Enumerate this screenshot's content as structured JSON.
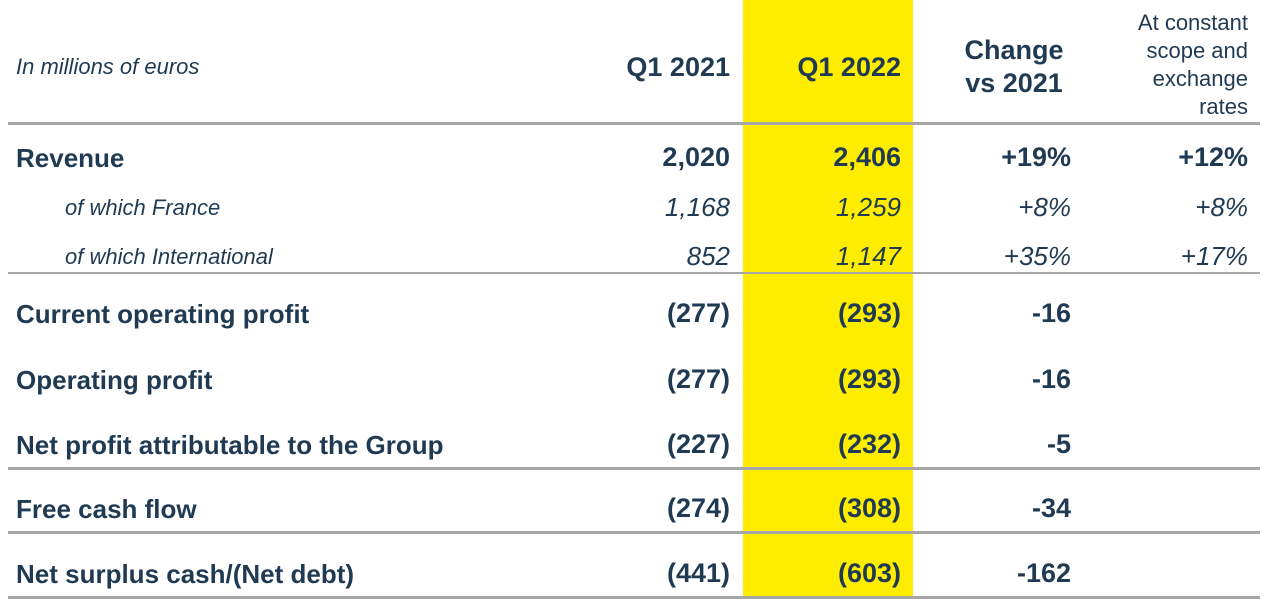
{
  "header": {
    "unit_label": "In millions of euros",
    "col_q1_2021": "Q1 2021",
    "col_q1_2022": "Q1 2022",
    "col_change_line1": "Change",
    "col_change_line2": "vs 2021",
    "col_constant_line1": "At constant",
    "col_constant_line2": "scope and",
    "col_constant_line3": "exchange",
    "col_constant_line4": "rates"
  },
  "highlight_color": "#ffed00",
  "rows": [
    {
      "label": "Revenue",
      "q1_2021": "2,020",
      "q1_2022": "2,406",
      "change": "+19%",
      "constant": "+12%"
    },
    {
      "label": "of which France",
      "q1_2021": "1,168",
      "q1_2022": "1,259",
      "change": "+8%",
      "constant": "+8%"
    },
    {
      "label": "of which International",
      "q1_2021": "852",
      "q1_2022": "1,147",
      "change": "+35%",
      "constant": "+17%"
    },
    {
      "label": "Current operating profit",
      "q1_2021": "(277)",
      "q1_2022": "(293)",
      "change": "-16",
      "constant": ""
    },
    {
      "label": "Operating profit",
      "q1_2021": "(277)",
      "q1_2022": "(293)",
      "change": "-16",
      "constant": ""
    },
    {
      "label": "Net profit attributable to the Group",
      "q1_2021": "(227)",
      "q1_2022": "(232)",
      "change": "-5",
      "constant": ""
    },
    {
      "label": "Free cash flow",
      "q1_2021": "(274)",
      "q1_2022": "(308)",
      "change": "-34",
      "constant": ""
    },
    {
      "label": "Net surplus cash/(Net debt)",
      "q1_2021": "(441)",
      "q1_2022": "(603)",
      "change": "-162",
      "constant": ""
    }
  ]
}
